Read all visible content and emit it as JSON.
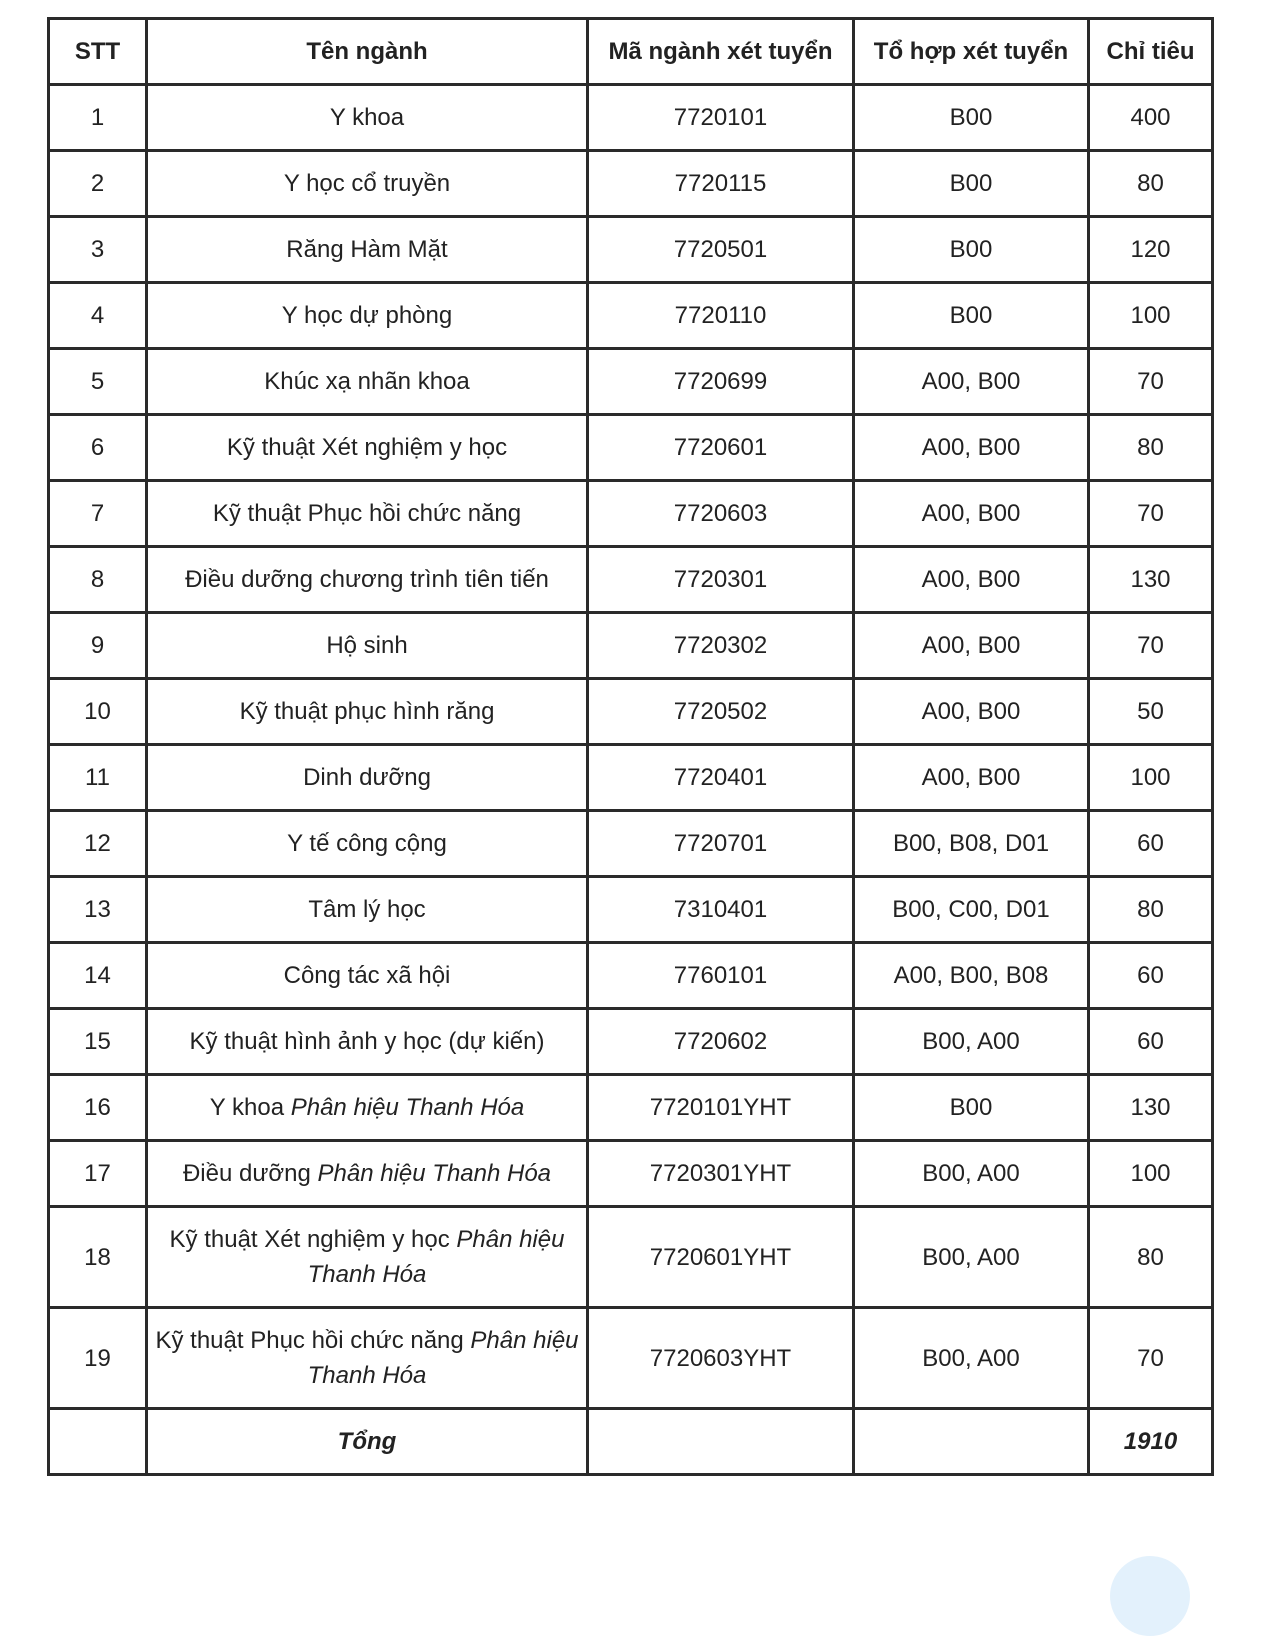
{
  "table": {
    "headers": [
      "STT",
      "Tên ngành",
      "Mã ngành xét tuyển",
      "Tổ hợp xét tuyển",
      "Chỉ tiêu"
    ],
    "rows": [
      {
        "stt": "1",
        "name": "Y khoa",
        "name_italic": "",
        "code": "7720101",
        "combo": "B00",
        "quota": "400"
      },
      {
        "stt": "2",
        "name": "Y học cổ truyền",
        "name_italic": "",
        "code": "7720115",
        "combo": "B00",
        "quota": "80"
      },
      {
        "stt": "3",
        "name": "Răng Hàm Mặt",
        "name_italic": "",
        "code": "7720501",
        "combo": "B00",
        "quota": "120"
      },
      {
        "stt": "4",
        "name": "Y học dự phòng",
        "name_italic": "",
        "code": "7720110",
        "combo": "B00",
        "quota": "100"
      },
      {
        "stt": "5",
        "name": "Khúc xạ nhãn khoa",
        "name_italic": "",
        "code": "7720699",
        "combo": "A00, B00",
        "quota": "70"
      },
      {
        "stt": "6",
        "name": "Kỹ thuật Xét nghiệm y học",
        "name_italic": "",
        "code": "7720601",
        "combo": "A00, B00",
        "quota": "80"
      },
      {
        "stt": "7",
        "name": "Kỹ thuật Phục hồi chức năng",
        "name_italic": "",
        "code": "7720603",
        "combo": "A00, B00",
        "quota": "70"
      },
      {
        "stt": "8",
        "name": "Điều dưỡng chương trình tiên tiến",
        "name_italic": "",
        "code": "7720301",
        "combo": "A00, B00",
        "quota": "130"
      },
      {
        "stt": "9",
        "name": "Hộ sinh",
        "name_italic": "",
        "code": "7720302",
        "combo": "A00, B00",
        "quota": "70"
      },
      {
        "stt": "10",
        "name": "Kỹ thuật phục hình răng",
        "name_italic": "",
        "code": "7720502",
        "combo": "A00, B00",
        "quota": "50"
      },
      {
        "stt": "11",
        "name": "Dinh dưỡng",
        "name_italic": "",
        "code": "7720401",
        "combo": "A00, B00",
        "quota": "100"
      },
      {
        "stt": "12",
        "name": "Y tế công cộng",
        "name_italic": "",
        "code": "7720701",
        "combo": "B00, B08, D01",
        "quota": "60"
      },
      {
        "stt": "13",
        "name": "Tâm lý học",
        "name_italic": "",
        "code": "7310401",
        "combo": "B00, C00, D01",
        "quota": "80"
      },
      {
        "stt": "14",
        "name": "Công tác xã hội",
        "name_italic": "",
        "code": "7760101",
        "combo": "A00, B00, B08",
        "quota": "60"
      },
      {
        "stt": "15",
        "name": "Kỹ thuật hình ảnh y học (dự kiến)",
        "name_italic": "",
        "code": "7720602",
        "combo": "B00, A00",
        "quota": "60"
      },
      {
        "stt": "16",
        "name": "Y khoa ",
        "name_italic": "Phân hiệu Thanh Hóa",
        "code": "7720101YHT",
        "combo": "B00",
        "quota": "130"
      },
      {
        "stt": "17",
        "name": "Điều dưỡng ",
        "name_italic": "Phân hiệu Thanh Hóa",
        "code": "7720301YHT",
        "combo": "B00, A00",
        "quota": "100"
      },
      {
        "stt": "18",
        "name": "Kỹ thuật Xét nghiệm y học ",
        "name_italic": "Phân hiệu Thanh Hóa",
        "code": "7720601YHT",
        "combo": "B00, A00",
        "quota": "80"
      },
      {
        "stt": "19",
        "name": "Kỹ thuật Phục hồi chức năng ",
        "name_italic": "Phân hiệu Thanh Hóa",
        "code": "7720603YHT",
        "combo": "B00, A00",
        "quota": "70"
      }
    ],
    "total": {
      "label": "Tổng",
      "quota": "1910"
    }
  }
}
